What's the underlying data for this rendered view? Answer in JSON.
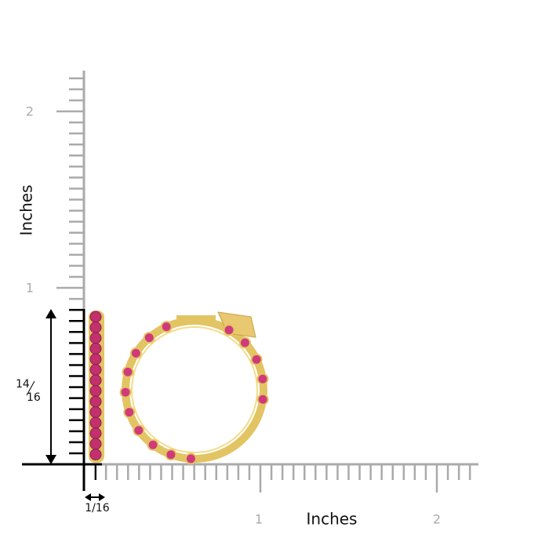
{
  "vertical_axis": {
    "label": "Inches",
    "ticks": [
      "1",
      "2"
    ]
  },
  "horizontal_axis": {
    "label": "Inches",
    "ticks": [
      "1",
      "2"
    ]
  },
  "height_label": {
    "numerator": "14",
    "denominator": "16"
  },
  "width_label": "1/16"
}
